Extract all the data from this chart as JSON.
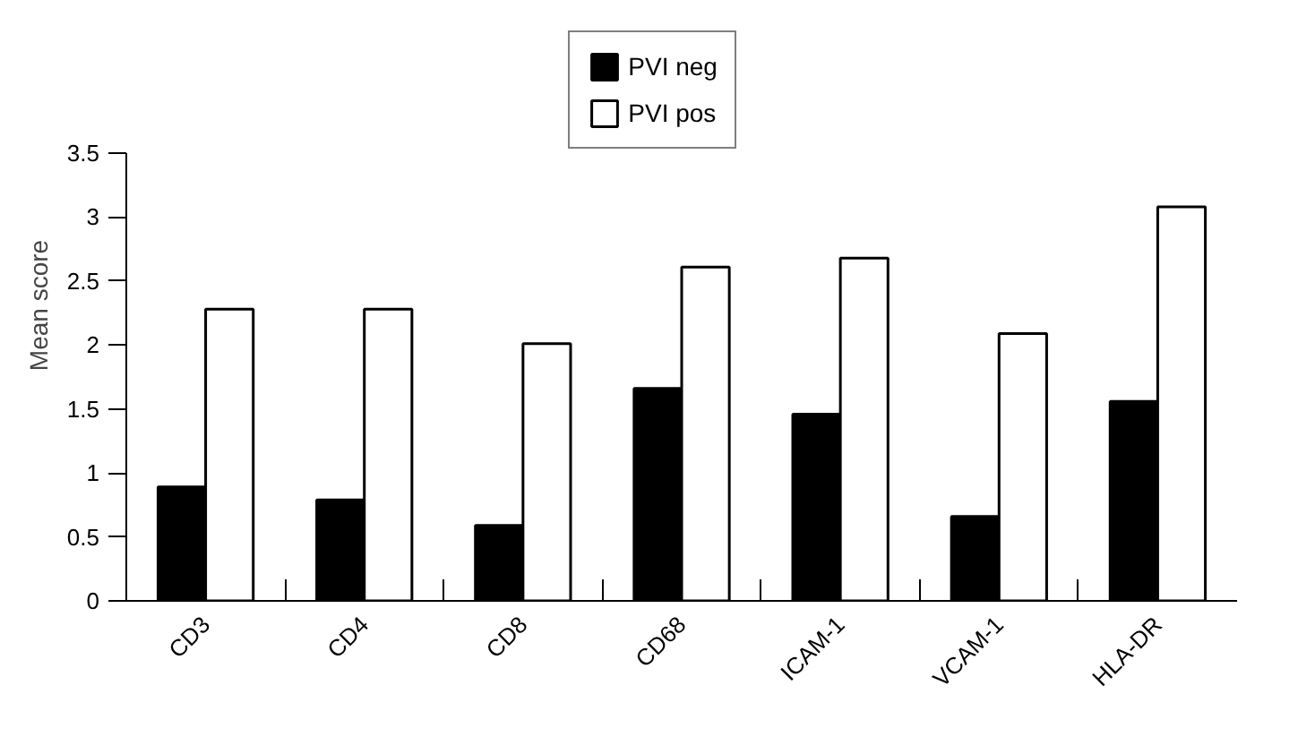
{
  "chart_data": {
    "type": "bar",
    "ylabel": "Mean score",
    "categories": [
      "CD3",
      "CD4",
      "CD8",
      "CD68",
      "ICAM-1",
      "VCAM-1",
      "HLA-DR"
    ],
    "series": [
      {
        "name": "PVI neg",
        "color": "#000000",
        "values": [
          0.89,
          0.79,
          0.59,
          1.66,
          1.46,
          0.66,
          1.56
        ]
      },
      {
        "name": "PVI pos",
        "color": "#ffffff",
        "values": [
          2.28,
          2.28,
          2.01,
          2.61,
          2.68,
          2.09,
          3.08
        ]
      }
    ],
    "ylim": [
      0,
      3.5
    ],
    "yticks": [
      0,
      0.5,
      1,
      1.5,
      2,
      2.5,
      3,
      3.5
    ],
    "grid": false,
    "legend": "top"
  }
}
